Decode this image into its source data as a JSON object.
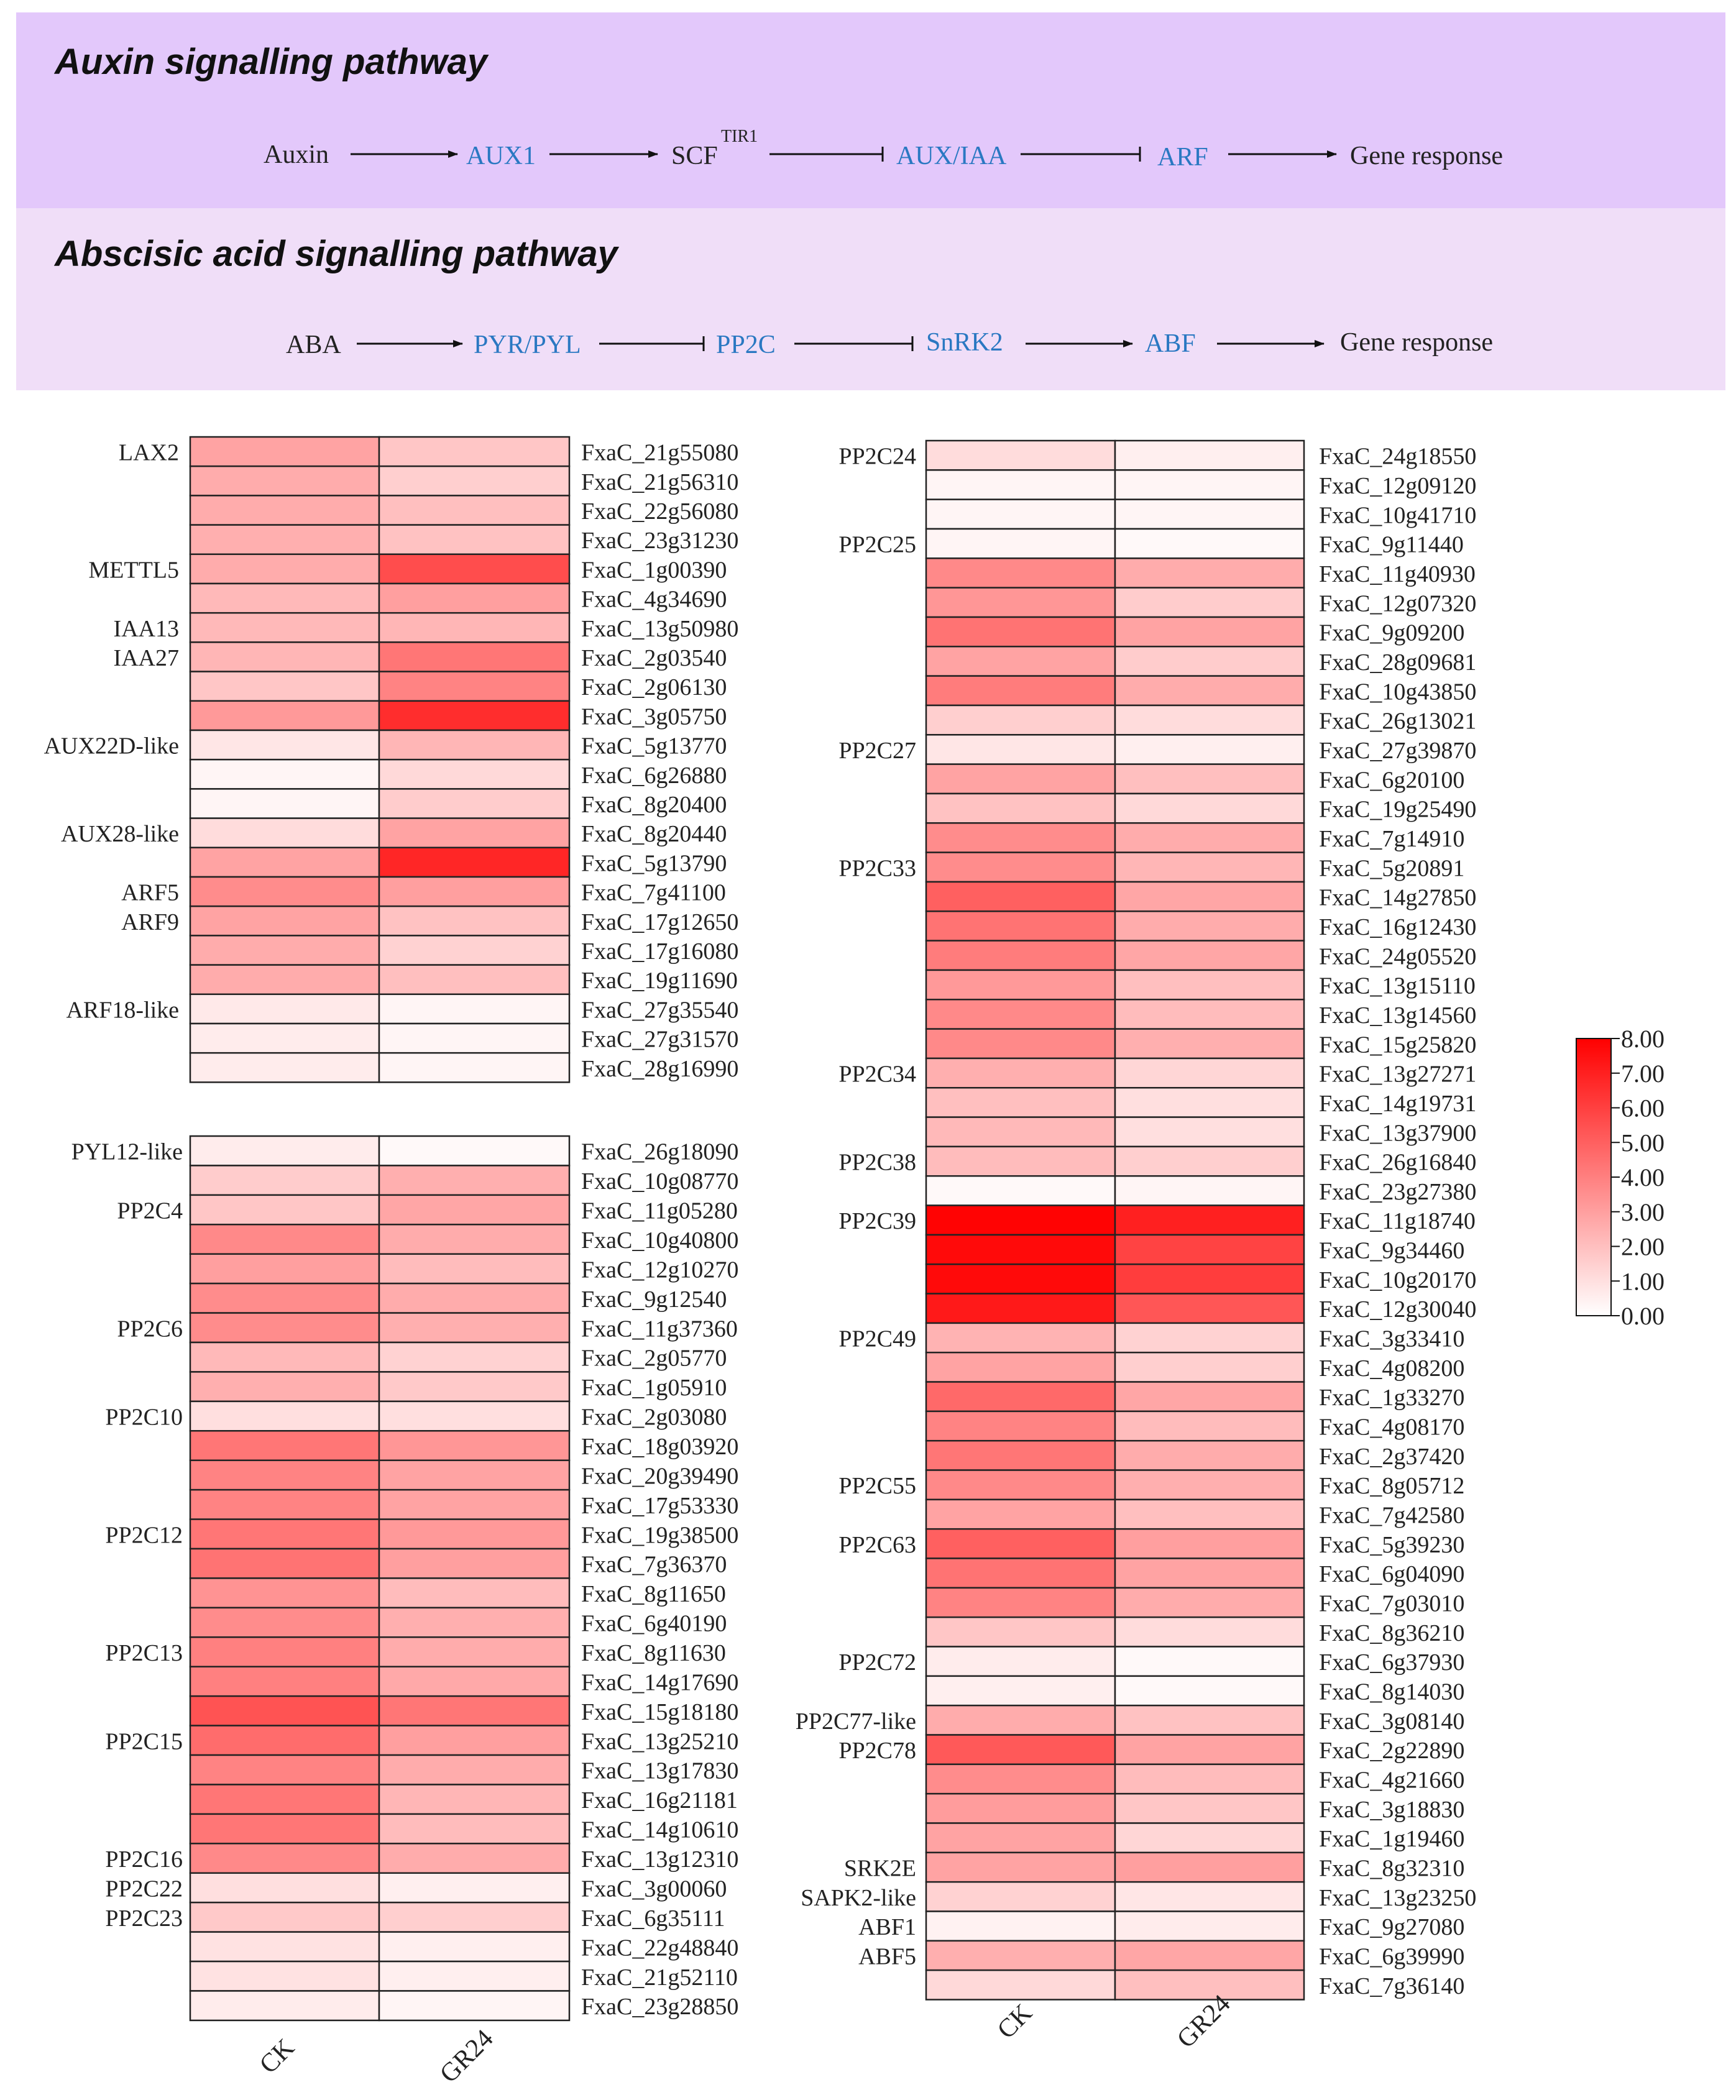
{
  "auxin_pathway": {
    "title": "Auxin signalling pathway",
    "nodes": [
      "Auxin",
      "AUX1",
      "SCF",
      "AUX/IAA",
      "ARF",
      "Gene response"
    ],
    "superscript": "TIR1"
  },
  "aba_pathway": {
    "title": "Abscisic acid signalling pathway",
    "nodes": [
      "ABA",
      "PYR/PYL",
      "PP2C",
      "SnRK2",
      "ABF",
      "Gene response"
    ]
  },
  "colors": {
    "high": "#ff0000",
    "low": "#ffffff",
    "pathway_gene": "#2a78c2"
  },
  "chart_data": {
    "type": "heatmap",
    "columns": [
      "CK",
      "GR24"
    ],
    "colorbar": {
      "min": 0,
      "max": 8,
      "ticks": [
        "8.00",
        "7.00",
        "6.00",
        "5.00",
        "4.00",
        "3.00",
        "2.00",
        "1.00",
        "0.00"
      ]
    },
    "panels": [
      {
        "name": "left-top",
        "rows": [
          {
            "gene": "FxaC_21g55080",
            "label": "LAX2",
            "ck": 2.9,
            "gr24": 1.8
          },
          {
            "gene": "FxaC_21g56310",
            "label": "",
            "ck": 2.6,
            "gr24": 1.5
          },
          {
            "gene": "FxaC_22g56080",
            "label": "",
            "ck": 2.6,
            "gr24": 2.0
          },
          {
            "gene": "FxaC_23g31230",
            "label": "",
            "ck": 2.5,
            "gr24": 1.9
          },
          {
            "gene": "FxaC_1g00390",
            "label": "METTL5",
            "ck": 2.6,
            "gr24": 5.6
          },
          {
            "gene": "FxaC_4g34690",
            "label": "",
            "ck": 2.2,
            "gr24": 3.0
          },
          {
            "gene": "FxaC_13g50980",
            "label": "IAA13",
            "ck": 2.2,
            "gr24": 2.3
          },
          {
            "gene": "FxaC_2g03540",
            "label": "IAA27",
            "ck": 2.3,
            "gr24": 4.3
          },
          {
            "gene": "FxaC_2g06130",
            "label": "",
            "ck": 1.8,
            "gr24": 3.9
          },
          {
            "gene": "FxaC_3g05750",
            "label": "",
            "ck": 3.2,
            "gr24": 6.6
          },
          {
            "gene": "FxaC_5g13770",
            "label": "AUX22D-like",
            "ck": 0.8,
            "gr24": 2.3
          },
          {
            "gene": "FxaC_6g26880",
            "label": "",
            "ck": 0.3,
            "gr24": 1.2
          },
          {
            "gene": "FxaC_8g20400",
            "label": "",
            "ck": 0.3,
            "gr24": 1.6
          },
          {
            "gene": "FxaC_8g20440",
            "label": "AUX28-like",
            "ck": 1.1,
            "gr24": 2.9
          },
          {
            "gene": "FxaC_5g13790",
            "label": "",
            "ck": 2.9,
            "gr24": 6.8
          },
          {
            "gene": "FxaC_7g41100",
            "label": "ARF5",
            "ck": 3.6,
            "gr24": 3.0
          },
          {
            "gene": "FxaC_17g12650",
            "label": "ARF9",
            "ck": 2.9,
            "gr24": 1.9
          },
          {
            "gene": "FxaC_17g16080",
            "label": "",
            "ck": 2.6,
            "gr24": 1.4
          },
          {
            "gene": "FxaC_19g11690",
            "label": "",
            "ck": 2.6,
            "gr24": 2.0
          },
          {
            "gene": "FxaC_27g35540",
            "label": "ARF18-like",
            "ck": 0.7,
            "gr24": 0.3
          },
          {
            "gene": "FxaC_27g31570",
            "label": "",
            "ck": 0.6,
            "gr24": 0.3
          },
          {
            "gene": "FxaC_28g16990",
            "label": "",
            "ck": 0.6,
            "gr24": 0.3
          }
        ]
      },
      {
        "name": "left-bottom",
        "rows": [
          {
            "gene": "FxaC_26g18090",
            "label": "PYL12-like",
            "ck": 0.6,
            "gr24": 0.2
          },
          {
            "gene": "FxaC_10g08770",
            "label": "",
            "ck": 1.6,
            "gr24": 2.5
          },
          {
            "gene": "FxaC_11g05280",
            "label": "PP2C4",
            "ck": 1.8,
            "gr24": 2.8
          },
          {
            "gene": "FxaC_10g40800",
            "label": "",
            "ck": 3.7,
            "gr24": 2.6
          },
          {
            "gene": "FxaC_12g10270",
            "label": "",
            "ck": 3.0,
            "gr24": 2.1
          },
          {
            "gene": "FxaC_9g12540",
            "label": "",
            "ck": 3.6,
            "gr24": 2.6
          },
          {
            "gene": "FxaC_11g37360",
            "label": "PP2C6",
            "ck": 3.6,
            "gr24": 2.5
          },
          {
            "gene": "FxaC_2g05770",
            "label": "",
            "ck": 2.2,
            "gr24": 1.4
          },
          {
            "gene": "FxaC_1g05910",
            "label": "",
            "ck": 2.5,
            "gr24": 1.7
          },
          {
            "gene": "FxaC_2g03080",
            "label": "PP2C10",
            "ck": 1.0,
            "gr24": 1.0
          },
          {
            "gene": "FxaC_18g03920",
            "label": "",
            "ck": 4.3,
            "gr24": 3.3
          },
          {
            "gene": "FxaC_20g39490",
            "label": "",
            "ck": 3.9,
            "gr24": 2.9
          },
          {
            "gene": "FxaC_17g53330",
            "label": "",
            "ck": 3.9,
            "gr24": 2.9
          },
          {
            "gene": "FxaC_19g38500",
            "label": "PP2C12",
            "ck": 4.3,
            "gr24": 3.2
          },
          {
            "gene": "FxaC_7g36370",
            "label": "",
            "ck": 4.4,
            "gr24": 3.0
          },
          {
            "gene": "FxaC_8g11650",
            "label": "",
            "ck": 3.4,
            "gr24": 2.1
          },
          {
            "gene": "FxaC_6g40190",
            "label": "",
            "ck": 3.6,
            "gr24": 2.5
          },
          {
            "gene": "FxaC_8g11630",
            "label": "PP2C13",
            "ck": 4.0,
            "gr24": 2.6
          },
          {
            "gene": "FxaC_14g17690",
            "label": "",
            "ck": 4.0,
            "gr24": 2.7
          },
          {
            "gene": "FxaC_15g18180",
            "label": "",
            "ck": 5.4,
            "gr24": 4.3
          },
          {
            "gene": "FxaC_13g25210",
            "label": "PP2C15",
            "ck": 4.6,
            "gr24": 3.0
          },
          {
            "gene": "FxaC_13g17830",
            "label": "",
            "ck": 3.9,
            "gr24": 2.6
          },
          {
            "gene": "FxaC_16g21181",
            "label": "",
            "ck": 4.3,
            "gr24": 2.3
          },
          {
            "gene": "FxaC_14g10610",
            "label": "",
            "ck": 4.3,
            "gr24": 2.1
          },
          {
            "gene": "FxaC_13g12310",
            "label": "PP2C16",
            "ck": 3.7,
            "gr24": 2.6
          },
          {
            "gene": "FxaC_3g00060",
            "label": "PP2C22",
            "ck": 1.0,
            "gr24": 0.5
          },
          {
            "gene": "FxaC_6g35111",
            "label": "PP2C23",
            "ck": 1.7,
            "gr24": 1.5
          },
          {
            "gene": "FxaC_22g48840",
            "label": "",
            "ck": 0.9,
            "gr24": 0.5
          },
          {
            "gene": "FxaC_21g52110",
            "label": "",
            "ck": 0.9,
            "gr24": 0.5
          },
          {
            "gene": "FxaC_23g28850",
            "label": "",
            "ck": 0.6,
            "gr24": 0.3
          }
        ]
      },
      {
        "name": "right",
        "rows": [
          {
            "gene": "FxaC_24g18550",
            "label": "PP2C24",
            "ck": 1.1,
            "gr24": 0.5
          },
          {
            "gene": "FxaC_12g09120",
            "label": "",
            "ck": 0.3,
            "gr24": 0.3
          },
          {
            "gene": "FxaC_10g41710",
            "label": "",
            "ck": 0.3,
            "gr24": 0.3
          },
          {
            "gene": "FxaC_9g11440",
            "label": "PP2C25",
            "ck": 0.3,
            "gr24": 0.2
          },
          {
            "gene": "FxaC_11g40930",
            "label": "",
            "ck": 3.7,
            "gr24": 2.6
          },
          {
            "gene": "FxaC_12g07320",
            "label": "",
            "ck": 3.3,
            "gr24": 1.6
          },
          {
            "gene": "FxaC_9g09200",
            "label": "",
            "ck": 4.4,
            "gr24": 2.9
          },
          {
            "gene": "FxaC_28g09681",
            "label": "",
            "ck": 2.9,
            "gr24": 1.6
          },
          {
            "gene": "FxaC_10g43850",
            "label": "",
            "ck": 4.1,
            "gr24": 2.6
          },
          {
            "gene": "FxaC_26g13021",
            "label": "",
            "ck": 1.5,
            "gr24": 1.1
          },
          {
            "gene": "FxaC_27g39870",
            "label": "PP2C27",
            "ck": 0.8,
            "gr24": 0.5
          },
          {
            "gene": "FxaC_6g20100",
            "label": "",
            "ck": 2.9,
            "gr24": 2.0
          },
          {
            "gene": "FxaC_19g25490",
            "label": "",
            "ck": 1.9,
            "gr24": 1.2
          },
          {
            "gene": "FxaC_7g14910",
            "label": "",
            "ck": 3.6,
            "gr24": 2.6
          },
          {
            "gene": "FxaC_5g20891",
            "label": "PP2C33",
            "ck": 3.6,
            "gr24": 2.3
          },
          {
            "gene": "FxaC_14g27850",
            "label": "",
            "ck": 5.0,
            "gr24": 2.8
          },
          {
            "gene": "FxaC_16g12430",
            "label": "",
            "ck": 4.4,
            "gr24": 2.6
          },
          {
            "gene": "FxaC_24g05520",
            "label": "",
            "ck": 4.1,
            "gr24": 2.8
          },
          {
            "gene": "FxaC_13g15110",
            "label": "",
            "ck": 3.2,
            "gr24": 2.0
          },
          {
            "gene": "FxaC_13g14560",
            "label": "",
            "ck": 3.7,
            "gr24": 2.1
          },
          {
            "gene": "FxaC_15g25820",
            "label": "",
            "ck": 3.7,
            "gr24": 2.5
          },
          {
            "gene": "FxaC_13g27271",
            "label": "PP2C34",
            "ck": 2.5,
            "gr24": 1.3
          },
          {
            "gene": "FxaC_14g19731",
            "label": "",
            "ck": 2.0,
            "gr24": 1.0
          },
          {
            "gene": "FxaC_13g37900",
            "label": "",
            "ck": 2.2,
            "gr24": 1.0
          },
          {
            "gene": "FxaC_26g16840",
            "label": "PP2C38",
            "ck": 2.1,
            "gr24": 1.5
          },
          {
            "gene": "FxaC_23g27380",
            "label": "",
            "ck": 0.2,
            "gr24": 0.3
          },
          {
            "gene": "FxaC_11g18740",
            "label": "PP2C39",
            "ck": 7.9,
            "gr24": 7.0
          },
          {
            "gene": "FxaC_9g34460",
            "label": "",
            "ck": 7.7,
            "gr24": 5.9
          },
          {
            "gene": "FxaC_10g20170",
            "label": "",
            "ck": 7.7,
            "gr24": 6.1
          },
          {
            "gene": "FxaC_12g30040",
            "label": "",
            "ck": 7.2,
            "gr24": 5.3
          },
          {
            "gene": "FxaC_3g33410",
            "label": "PP2C49",
            "ck": 2.4,
            "gr24": 1.4
          },
          {
            "gene": "FxaC_4g08200",
            "label": "",
            "ck": 2.9,
            "gr24": 1.5
          },
          {
            "gene": "FxaC_1g33270",
            "label": "",
            "ck": 4.7,
            "gr24": 2.8
          },
          {
            "gene": "FxaC_4g08170",
            "label": "",
            "ck": 3.9,
            "gr24": 2.1
          },
          {
            "gene": "FxaC_2g37420",
            "label": "",
            "ck": 4.3,
            "gr24": 2.6
          },
          {
            "gene": "FxaC_8g05712",
            "label": "PP2C55",
            "ck": 3.7,
            "gr24": 2.5
          },
          {
            "gene": "FxaC_7g42580",
            "label": "",
            "ck": 2.9,
            "gr24": 2.0
          },
          {
            "gene": "FxaC_5g39230",
            "label": "PP2C63",
            "ck": 5.0,
            "gr24": 3.0
          },
          {
            "gene": "FxaC_6g04090",
            "label": "",
            "ck": 4.4,
            "gr24": 2.9
          },
          {
            "gene": "FxaC_7g03010",
            "label": "",
            "ck": 3.9,
            "gr24": 2.6
          },
          {
            "gene": "FxaC_8g36210",
            "label": "",
            "ck": 1.8,
            "gr24": 1.1
          },
          {
            "gene": "FxaC_6g37930",
            "label": "PP2C72",
            "ck": 0.6,
            "gr24": 0.2
          },
          {
            "gene": "FxaC_8g14030",
            "label": "",
            "ck": 0.5,
            "gr24": 0.2
          },
          {
            "gene": "FxaC_3g08140",
            "label": "PP2C77-like",
            "ck": 2.6,
            "gr24": 1.9
          },
          {
            "gene": "FxaC_2g22890",
            "label": "PP2C78",
            "ck": 5.2,
            "gr24": 2.9
          },
          {
            "gene": "FxaC_4g21660",
            "label": "",
            "ck": 3.6,
            "gr24": 2.1
          },
          {
            "gene": "FxaC_3g18830",
            "label": "",
            "ck": 3.1,
            "gr24": 1.8
          },
          {
            "gene": "FxaC_1g19460",
            "label": "",
            "ck": 2.9,
            "gr24": 1.3
          },
          {
            "gene": "FxaC_8g32310",
            "label": "SRK2E",
            "ck": 2.9,
            "gr24": 3.0
          },
          {
            "gene": "FxaC_13g23250",
            "label": "SAPK2-like",
            "ck": 1.4,
            "gr24": 0.8
          },
          {
            "gene": "FxaC_9g27080",
            "label": "ABF1",
            "ck": 0.4,
            "gr24": 0.6
          },
          {
            "gene": "FxaC_6g39990",
            "label": "ABF5",
            "ck": 2.5,
            "gr24": 2.8
          },
          {
            "gene": "FxaC_7g36140",
            "label": "",
            "ck": 1.2,
            "gr24": 2.0
          }
        ]
      }
    ]
  }
}
